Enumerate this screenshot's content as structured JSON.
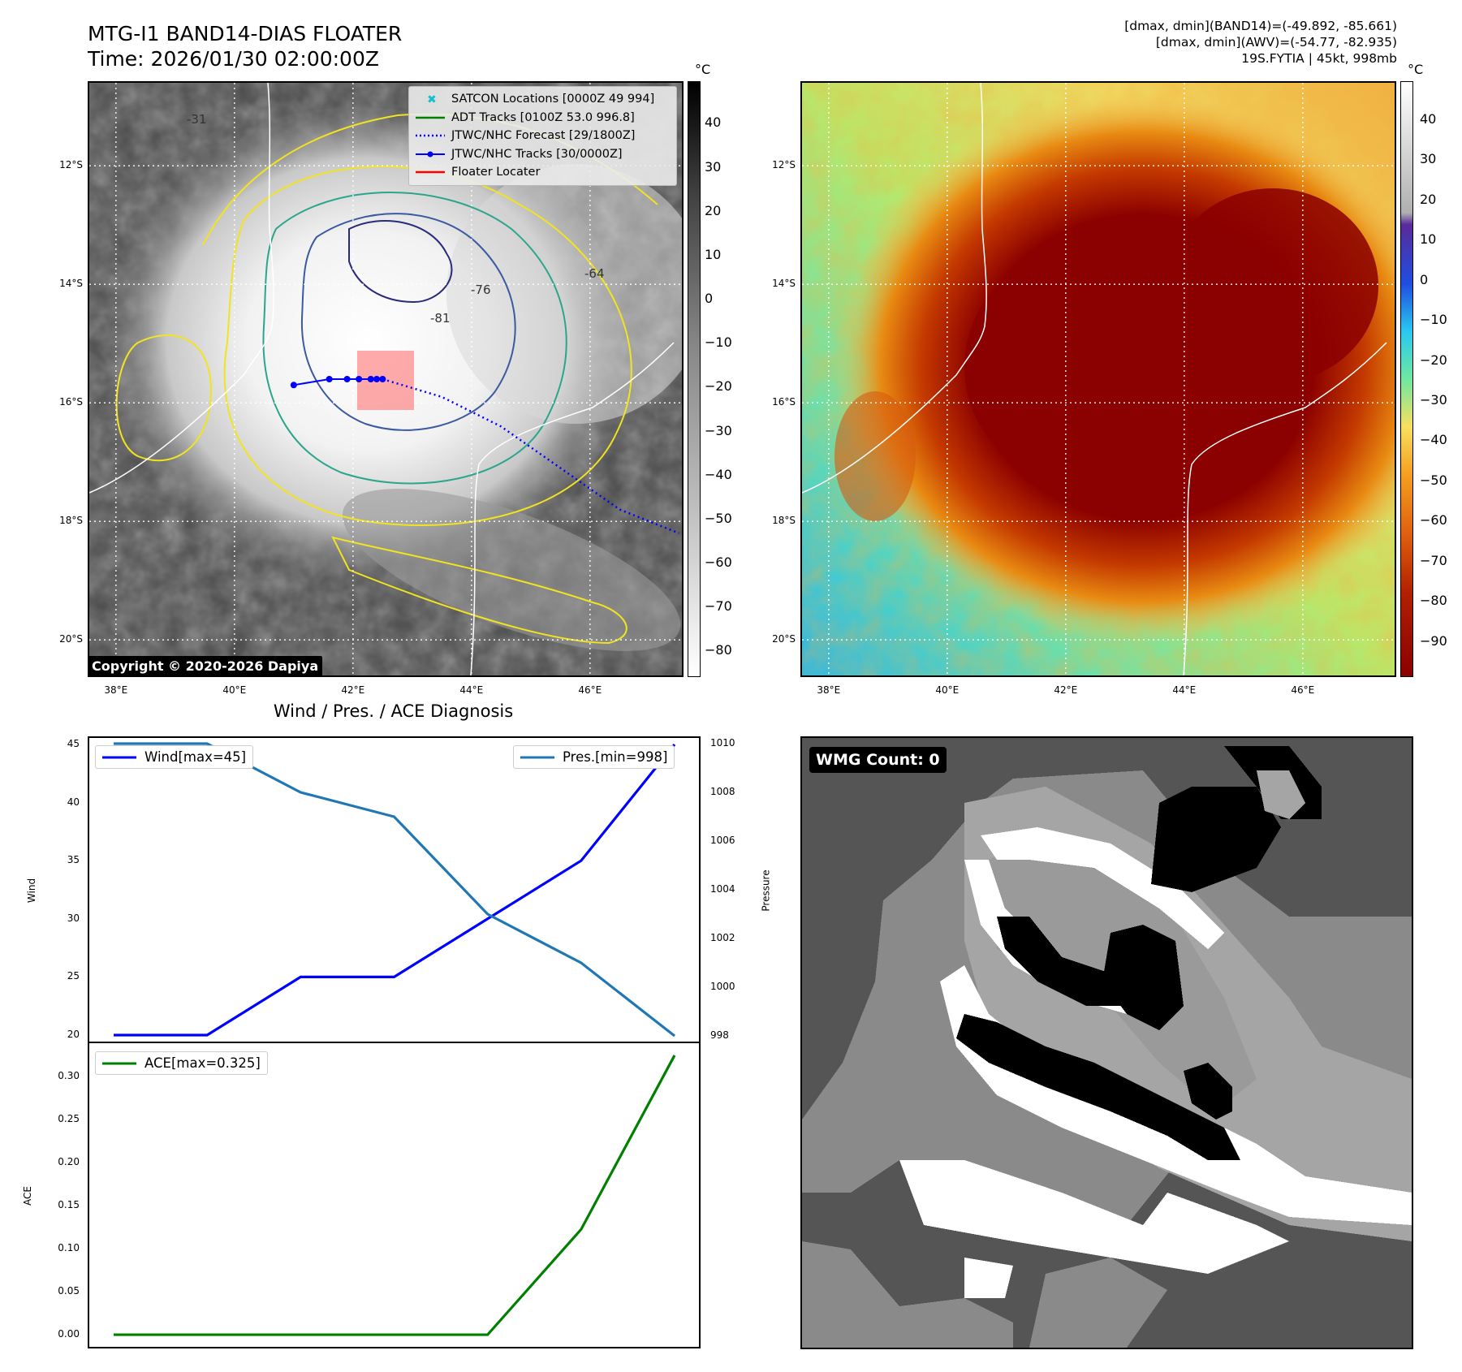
{
  "header": {
    "title_line1": "MTG-I1 BAND14-DIAS FLOATER",
    "title_line2": "Time: 2026/01/30 02:00:00Z",
    "stats_line1": "[dmax, dmin](BAND14)=(-49.892, -85.661)",
    "stats_line2": "[dmax, dmin](AWV)=(-54.77, -82.935)",
    "stats_line3": "19S.FYTIA | 45kt, 998mb"
  },
  "map": {
    "lat_labels": [
      "12°S",
      "14°S",
      "16°S",
      "18°S",
      "20°S"
    ],
    "lon_labels": [
      "38°E",
      "40°E",
      "42°E",
      "44°E",
      "46°E"
    ],
    "copyright": "Copyright © 2020-2026 Dapiya",
    "contour_labels": [
      "-31",
      "-64",
      "-76",
      "-81"
    ],
    "legend": [
      {
        "label": "SATCON Locations [0000Z 49 994]",
        "color": "#17becf",
        "style": "x-marker"
      },
      {
        "label": "ADT Tracks [0100Z 53.0 996.8]",
        "color": "#008000",
        "style": "solid"
      },
      {
        "label": "JTWC/NHC Forecast [29/1800Z]",
        "color": "#0000ff",
        "style": "dotted"
      },
      {
        "label": "JTWC/NHC Tracks [30/0000Z]",
        "color": "#0000ff",
        "style": "solid-dot"
      },
      {
        "label": "Floater Locater",
        "color": "#ff0000",
        "style": "solid"
      }
    ],
    "track_points": [
      [
        41.0,
        -15.7
      ],
      [
        41.6,
        -15.6
      ],
      [
        41.9,
        -15.6
      ],
      [
        42.1,
        -15.6
      ],
      [
        42.3,
        -15.6
      ],
      [
        42.4,
        -15.6
      ],
      [
        42.5,
        -15.6
      ]
    ],
    "forecast_points": [
      [
        42.5,
        -15.6
      ],
      [
        43.5,
        -15.9
      ],
      [
        44.5,
        -16.4
      ],
      [
        45.5,
        -17.1
      ],
      [
        46.5,
        -17.8
      ],
      [
        47.5,
        -18.2
      ]
    ]
  },
  "colorbar_gray": {
    "unit": "°C",
    "ticks": [
      "40",
      "30",
      "20",
      "10",
      "0",
      "−10",
      "−20",
      "−30",
      "−40",
      "−50",
      "−60",
      "−70",
      "−80"
    ]
  },
  "colorbar_color": {
    "unit": "°C",
    "ticks": [
      "40",
      "30",
      "20",
      "10",
      "0",
      "−10",
      "−20",
      "−30",
      "−40",
      "−50",
      "−60",
      "−70",
      "−80",
      "−90"
    ]
  },
  "diagnosis_title": "Wind / Pres. / ACE Diagnosis",
  "wmg_label": "WMG Count: 0",
  "chart_data": [
    {
      "type": "line",
      "title": "Wind / Pres. / ACE Diagnosis",
      "ylabel": "Wind",
      "y2label": "Pressure",
      "x": [
        0,
        1,
        2,
        3,
        4,
        5,
        6
      ],
      "series": [
        {
          "name": "Wind[max=45]",
          "axis": "left",
          "color": "#0000ff",
          "values": [
            20,
            20,
            25,
            25,
            30,
            35,
            45
          ]
        },
        {
          "name": "Pres.[min=998]",
          "axis": "right",
          "color": "#1f77b4",
          "values": [
            1010,
            1010,
            1008,
            1007,
            1003,
            1001,
            998
          ]
        }
      ],
      "ylim": [
        19.3,
        45.7
      ],
      "y2lim": [
        997.7,
        1010.3
      ],
      "yticks": [
        20,
        25,
        30,
        35,
        40,
        45
      ],
      "y2ticks": [
        998,
        1000,
        1002,
        1004,
        1006,
        1008,
        1010
      ]
    },
    {
      "type": "line",
      "ylabel": "ACE",
      "x": [
        0,
        1,
        2,
        3,
        4,
        5,
        6
      ],
      "series": [
        {
          "name": "ACE[max=0.325]",
          "color": "#008000",
          "values": [
            0,
            0,
            0,
            0,
            0,
            0.1225,
            0.325
          ]
        }
      ],
      "ylim": [
        -0.016,
        0.341
      ],
      "yticks": [
        "0.00",
        "0.05",
        "0.10",
        "0.15",
        "0.20",
        "0.25",
        "0.30"
      ]
    }
  ],
  "colors": {
    "wind": "#0000ff",
    "pressure": "#1f77b4",
    "ace": "#008000",
    "floater": "#ff0000"
  }
}
